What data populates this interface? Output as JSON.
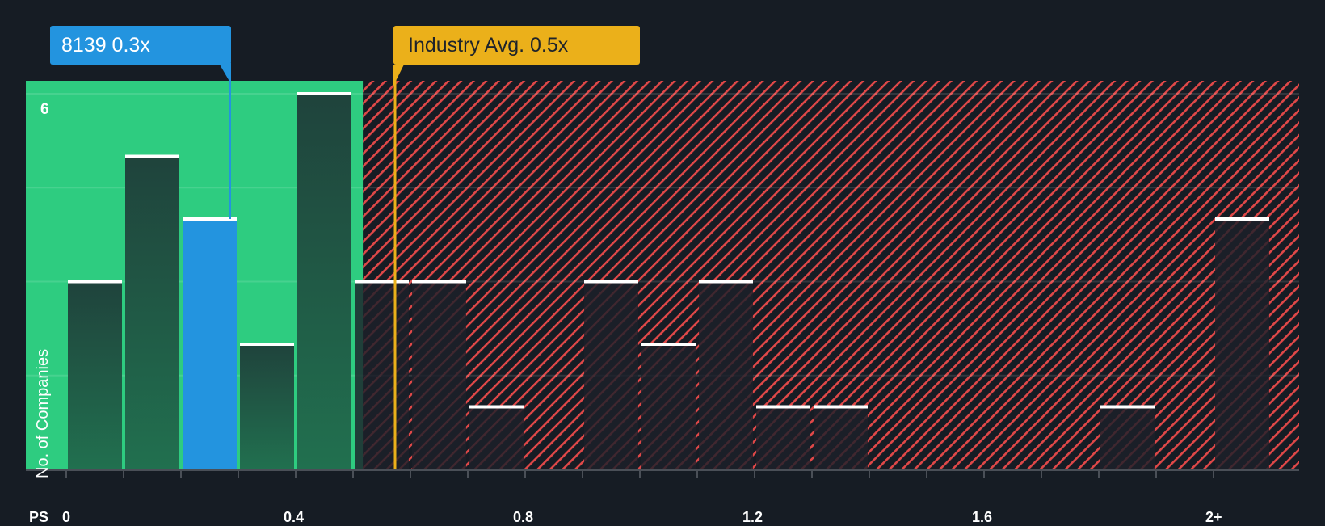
{
  "callouts": {
    "company": "8139 0.3x",
    "industry": "Industry Avg. 0.5x"
  },
  "axis": {
    "x_prefix": "PS",
    "y_label": "No. of Companies",
    "y_top_tick": "6"
  },
  "colors": {
    "background": "#161c24",
    "undervalued_region": "#2ecc80",
    "company_bar": "#2394df",
    "industry_marker": "#ebb01a",
    "overvalued_hatch": "#e04848"
  },
  "chart_data": {
    "type": "bar",
    "title": "",
    "xlabel": "PS",
    "ylabel": "No. of Companies",
    "x_ticks": [
      "0",
      "0.4",
      "0.8",
      "1.2",
      "1.6",
      "2+"
    ],
    "y_ticks_shown": [
      "6"
    ],
    "ylim": [
      0,
      6.2
    ],
    "bin_width": 0.1,
    "categories": [
      "0-0.1",
      "0.1-0.2",
      "0.2-0.3",
      "0.3-0.4",
      "0.4-0.5",
      "0.5-0.6",
      "0.6-0.7",
      "0.7-0.8",
      "0.8-0.9",
      "0.9-1.0",
      "1.0-1.1",
      "1.1-1.2",
      "1.2-1.3",
      "1.3-1.4",
      "1.4-1.5",
      "1.5-1.6",
      "1.6-1.7",
      "1.7-1.8",
      "1.8-1.9",
      "1.9-2.0",
      "2+"
    ],
    "values": [
      3,
      5,
      4,
      2,
      6,
      3,
      3,
      1,
      0,
      3,
      2,
      3,
      1,
      1,
      0,
      0,
      0,
      0,
      1,
      0,
      4
    ],
    "highlighted_bin": "0.2-0.3",
    "company_value": 0.3,
    "company_label": "8139",
    "industry_average": 0.5,
    "undervalued_range": [
      0,
      0.52
    ],
    "gridlines": true
  }
}
